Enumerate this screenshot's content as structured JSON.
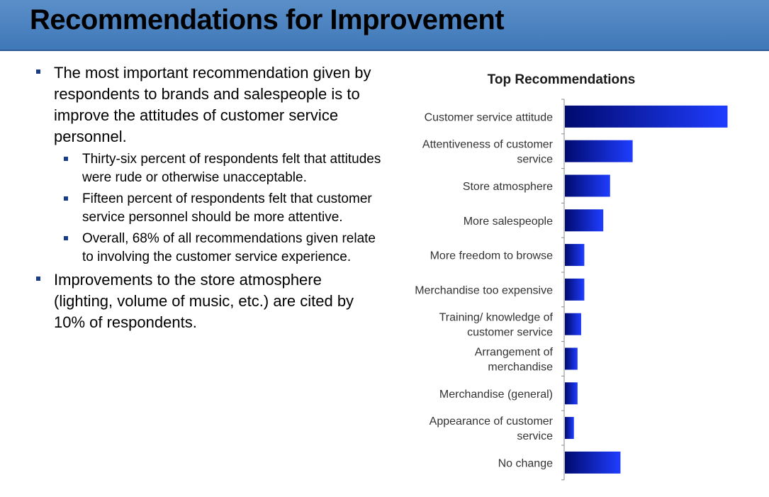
{
  "header": {
    "title": "Recommendations for Improvement"
  },
  "bullets": [
    {
      "text": "The most important recommendation given by respondents to brands and salespeople is to improve the attitudes of customer service personnel.",
      "sub": [
        "Thirty-six percent of respondents felt that attitudes were rude or otherwise unacceptable.",
        "Fifteen percent of respondents felt that customer service personnel should be more attentive.",
        "Overall, 68% of all recommendations given relate to involving the customer service experience."
      ]
    },
    {
      "text": "Improvements to the store atmosphere (lighting, volume of music, etc.) are cited by 10% of respondents.",
      "sub": []
    }
  ],
  "colors": {
    "title_bar": "#4a84c4",
    "bar_start": "#000a6e",
    "bar_end": "#1f3dff",
    "bullet": "#1a3a8a"
  },
  "chart_data": {
    "type": "bar",
    "orientation": "horizontal",
    "title": "Top Recommendations",
    "categories": [
      [
        "Customer service attitude"
      ],
      [
        "Attentiveness of customer",
        "service"
      ],
      [
        "Store atmosphere"
      ],
      [
        "More salespeople"
      ],
      [
        "More freedom to browse"
      ],
      [
        "Merchandise too expensive"
      ],
      [
        "Training/ knowledge of",
        "customer service"
      ],
      [
        "Arrangement of",
        "merchandise"
      ],
      [
        "Merchandise (general)"
      ],
      [
        "Appearance of customer",
        "service"
      ],
      [
        "No change"
      ]
    ],
    "values": [
      36,
      15,
      10,
      8.5,
      4.3,
      4.3,
      3.6,
      2.8,
      2.8,
      2,
      12.3
    ],
    "xlim": [
      0,
      40
    ],
    "grid": false,
    "legend": "none"
  }
}
